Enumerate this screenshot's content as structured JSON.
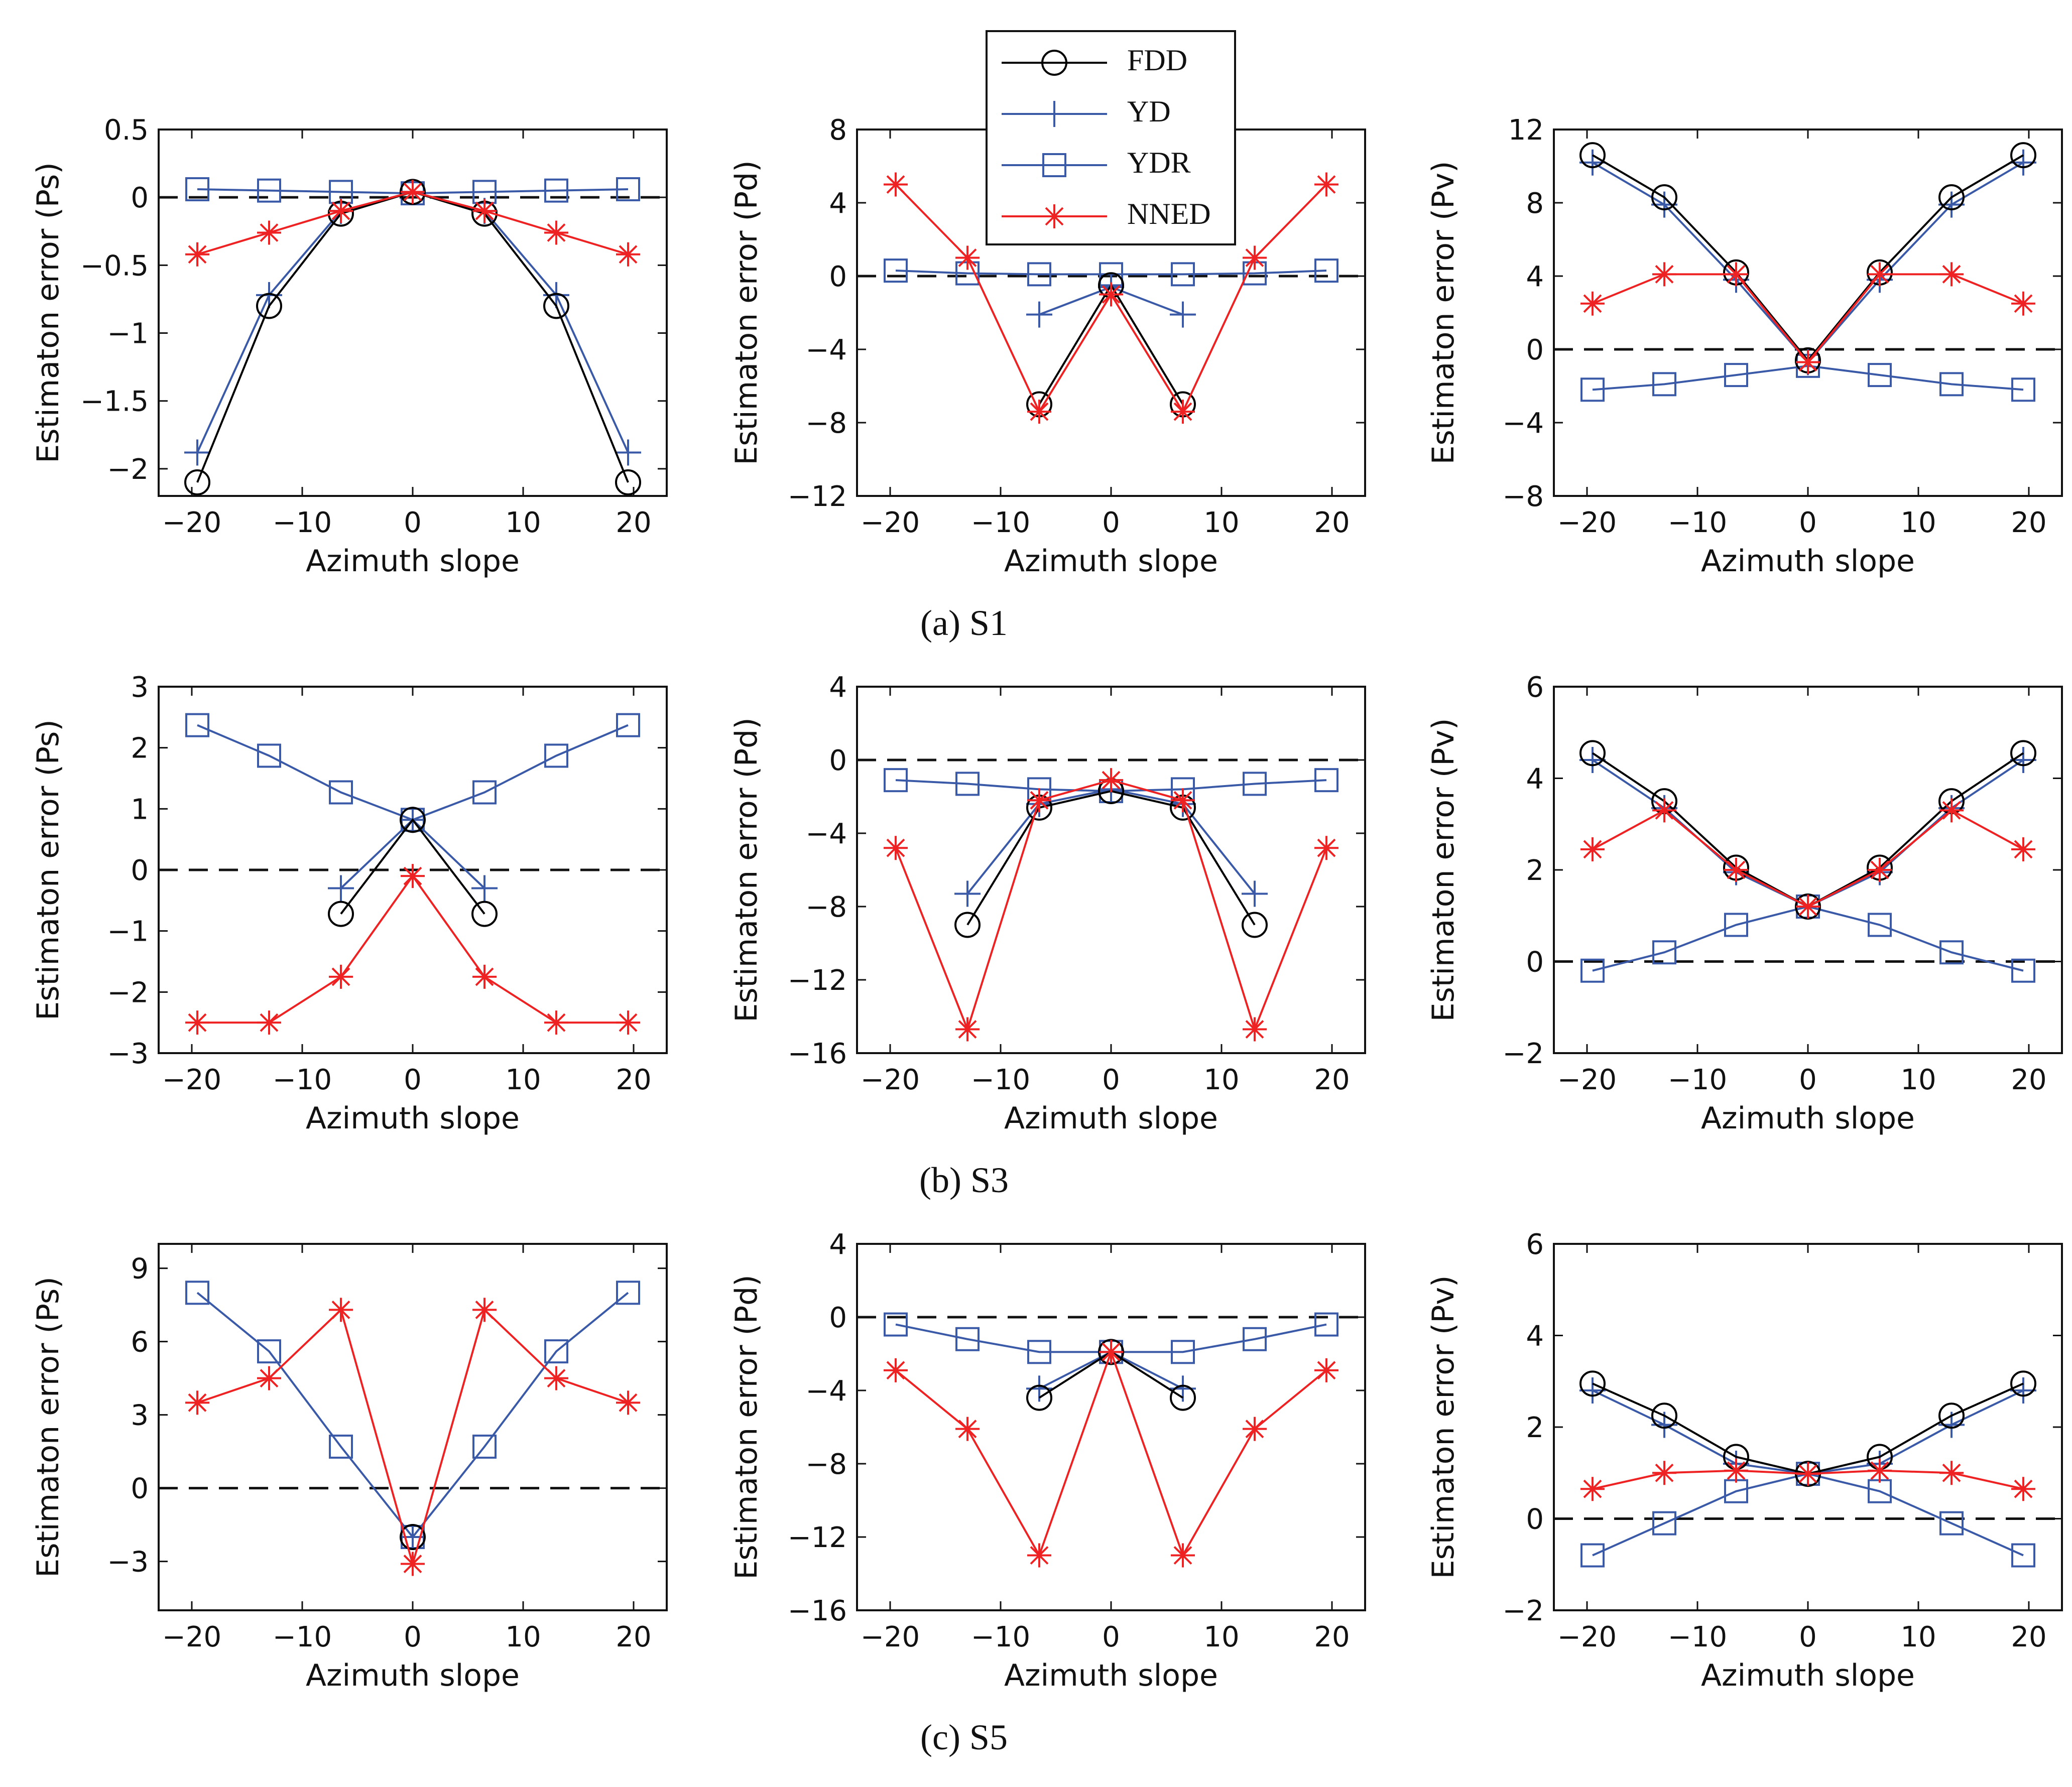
{
  "figure": {
    "legend": [
      {
        "name": "FDD",
        "color": "#000000",
        "marker": "circle"
      },
      {
        "name": "YD",
        "color": "#3a5aa8",
        "marker": "plus"
      },
      {
        "name": "YDR",
        "color": "#3a5aa8",
        "marker": "square"
      },
      {
        "name": "NNED",
        "color": "#ee2222",
        "marker": "asterisk"
      }
    ],
    "row_captions": [
      "(a) S1",
      "(b) S3",
      "(c) S5"
    ]
  },
  "chart_data": [
    {
      "type": "line",
      "row": 0,
      "col": 0,
      "xlabel": "Azimuth slope",
      "ylabel": "Estimaton error (Ps)",
      "xlim": [
        -23,
        23
      ],
      "ylim": [
        -2.2,
        0.5
      ],
      "xticks": [
        -20,
        -10,
        0,
        10,
        20
      ],
      "xtick_labels": [
        "−20",
        "−10",
        "0",
        "10",
        "20"
      ],
      "yticks": [
        0.5,
        0,
        -0.5,
        -1,
        -1.5,
        -2
      ],
      "ytick_labels": [
        "0.5",
        "0",
        "−0.5",
        "−1",
        "−1.5",
        "−2"
      ],
      "series": [
        {
          "name": "FDD",
          "x": [
            -19.5,
            -13,
            -6.5,
            0,
            6.5,
            13,
            19.5
          ],
          "y": [
            -2.1,
            -0.8,
            -0.12,
            0.04,
            -0.12,
            -0.8,
            -2.1
          ]
        },
        {
          "name": "YD",
          "x": [
            -19.5,
            -13,
            -6.5,
            0,
            6.5,
            13,
            19.5
          ],
          "y": [
            -1.88,
            -0.72,
            -0.1,
            0.04,
            -0.1,
            -0.72,
            -1.88
          ]
        },
        {
          "name": "YDR",
          "x": [
            -19.5,
            -13,
            -6.5,
            0,
            6.5,
            13,
            19.5
          ],
          "y": [
            0.06,
            0.05,
            0.04,
            0.03,
            0.04,
            0.05,
            0.06
          ]
        },
        {
          "name": "NNED",
          "x": [
            -19.5,
            -13,
            -6.5,
            0,
            6.5,
            13,
            19.5
          ],
          "y": [
            -0.42,
            -0.26,
            -0.1,
            0.04,
            -0.1,
            -0.26,
            -0.42
          ]
        }
      ]
    },
    {
      "type": "line",
      "row": 0,
      "col": 1,
      "xlabel": "Azimuth slope",
      "ylabel": "Estimaton error (Pd)",
      "xlim": [
        -23,
        23
      ],
      "ylim": [
        -12,
        8
      ],
      "xticks": [
        -20,
        -10,
        0,
        10,
        20
      ],
      "xtick_labels": [
        "−20",
        "−10",
        "0",
        "10",
        "20"
      ],
      "yticks": [
        8,
        4,
        0,
        -4,
        -8,
        -12
      ],
      "ytick_labels": [
        "8",
        "4",
        "0",
        "−4",
        "−8",
        "−12"
      ],
      "series": [
        {
          "name": "FDD",
          "x": [
            -6.5,
            0,
            6.5
          ],
          "y": [
            -7.0,
            -0.5,
            -7.0
          ]
        },
        {
          "name": "YD",
          "x": [
            -6.5,
            0,
            6.5
          ],
          "y": [
            -2.1,
            -0.6,
            -2.1
          ]
        },
        {
          "name": "YDR",
          "x": [
            -19.5,
            -13,
            -6.5,
            0,
            6.5,
            13,
            19.5
          ],
          "y": [
            0.3,
            0.15,
            0.1,
            0.1,
            0.1,
            0.15,
            0.3
          ]
        },
        {
          "name": "NNED",
          "x": [
            -19.5,
            -13,
            -6.5,
            0,
            6.5,
            13,
            19.5
          ],
          "y": [
            5.0,
            1.0,
            -7.4,
            -1.0,
            -7.4,
            1.0,
            5.0
          ]
        }
      ]
    },
    {
      "type": "line",
      "row": 0,
      "col": 2,
      "xlabel": "Azimuth slope",
      "ylabel": "Estimaton error (Pv)",
      "xlim": [
        -23,
        23
      ],
      "ylim": [
        -8,
        12
      ],
      "xticks": [
        -20,
        -10,
        0,
        10,
        20
      ],
      "xtick_labels": [
        "−20",
        "−10",
        "0",
        "10",
        "20"
      ],
      "yticks": [
        12,
        8,
        4,
        0,
        -4,
        -8
      ],
      "ytick_labels": [
        "12",
        "8",
        "4",
        "0",
        "−4",
        "−8"
      ],
      "series": [
        {
          "name": "FDD",
          "x": [
            -19.5,
            -13,
            -6.5,
            0,
            6.5,
            13,
            19.5
          ],
          "y": [
            10.6,
            8.3,
            4.2,
            -0.6,
            4.2,
            8.3,
            10.6
          ]
        },
        {
          "name": "YD",
          "x": [
            -19.5,
            -13,
            -6.5,
            0,
            6.5,
            13,
            19.5
          ],
          "y": [
            10.2,
            7.9,
            3.8,
            -0.7,
            3.8,
            7.9,
            10.2
          ]
        },
        {
          "name": "YDR",
          "x": [
            -19.5,
            -13,
            -6.5,
            0,
            6.5,
            13,
            19.5
          ],
          "y": [
            -2.2,
            -1.9,
            -1.4,
            -0.9,
            -1.4,
            -1.9,
            -2.2
          ]
        },
        {
          "name": "NNED",
          "x": [
            -19.5,
            -13,
            -6.5,
            0,
            6.5,
            13,
            19.5
          ],
          "y": [
            2.5,
            4.1,
            4.1,
            -0.7,
            4.1,
            4.1,
            2.5
          ]
        }
      ]
    },
    {
      "type": "line",
      "row": 1,
      "col": 0,
      "xlabel": "Azimuth slope",
      "ylabel": "Estimaton error (Ps)",
      "xlim": [
        -23,
        23
      ],
      "ylim": [
        -3,
        3
      ],
      "xticks": [
        -20,
        -10,
        0,
        10,
        20
      ],
      "xtick_labels": [
        "−20",
        "−10",
        "0",
        "10",
        "20"
      ],
      "yticks": [
        3,
        2,
        1,
        0,
        -1,
        -2,
        -3
      ],
      "ytick_labels": [
        "3",
        "2",
        "1",
        "0",
        "−1",
        "−2",
        "−3"
      ],
      "series": [
        {
          "name": "FDD",
          "x": [
            -6.5,
            0,
            6.5
          ],
          "y": [
            -0.72,
            0.82,
            -0.72
          ]
        },
        {
          "name": "YD",
          "x": [
            -6.5,
            0,
            6.5
          ],
          "y": [
            -0.3,
            0.82,
            -0.3
          ]
        },
        {
          "name": "YDR",
          "x": [
            -19.5,
            -13,
            -6.5,
            0,
            6.5,
            13,
            19.5
          ],
          "y": [
            2.37,
            1.87,
            1.27,
            0.82,
            1.27,
            1.87,
            2.37
          ]
        },
        {
          "name": "NNED",
          "x": [
            -19.5,
            -13,
            -6.5,
            0,
            6.5,
            13,
            19.5
          ],
          "y": [
            -2.5,
            -2.5,
            -1.75,
            -0.1,
            -1.75,
            -2.5,
            -2.5
          ]
        }
      ]
    },
    {
      "type": "line",
      "row": 1,
      "col": 1,
      "xlabel": "Azimuth slope",
      "ylabel": "Estimaton error (Pd)",
      "xlim": [
        -23,
        23
      ],
      "ylim": [
        -16,
        4
      ],
      "xticks": [
        -20,
        -10,
        0,
        10,
        20
      ],
      "xtick_labels": [
        "−20",
        "−10",
        "0",
        "10",
        "20"
      ],
      "yticks": [
        4,
        0,
        -4,
        -8,
        -12,
        -16
      ],
      "ytick_labels": [
        "4",
        "0",
        "−4",
        "−8",
        "−12",
        "−16"
      ],
      "series": [
        {
          "name": "FDD",
          "x": [
            -13,
            -6.5,
            0,
            6.5,
            13
          ],
          "y": [
            -9.0,
            -2.6,
            -1.7,
            -2.6,
            -9.0
          ]
        },
        {
          "name": "YD",
          "x": [
            -13,
            -6.5,
            0,
            6.5,
            13
          ],
          "y": [
            -7.3,
            -2.4,
            -1.6,
            -2.4,
            -7.3
          ]
        },
        {
          "name": "YDR",
          "x": [
            -19.5,
            -13,
            -6.5,
            0,
            6.5,
            13,
            19.5
          ],
          "y": [
            -1.1,
            -1.3,
            -1.6,
            -1.7,
            -1.6,
            -1.3,
            -1.1
          ]
        },
        {
          "name": "NNED",
          "x": [
            -19.5,
            -13,
            -6.5,
            0,
            6.5,
            13,
            19.5
          ],
          "y": [
            -4.8,
            -14.7,
            -2.2,
            -1.1,
            -2.2,
            -14.7,
            -4.8
          ]
        }
      ]
    },
    {
      "type": "line",
      "row": 1,
      "col": 2,
      "xlabel": "Azimuth slope",
      "ylabel": "Estimaton error (Pv)",
      "xlim": [
        -23,
        23
      ],
      "ylim": [
        -2,
        6
      ],
      "xticks": [
        -20,
        -10,
        0,
        10,
        20
      ],
      "xtick_labels": [
        "−20",
        "−10",
        "0",
        "10",
        "20"
      ],
      "yticks": [
        6,
        4,
        2,
        0,
        -2
      ],
      "ytick_labels": [
        "6",
        "4",
        "2",
        "0",
        "−2"
      ],
      "series": [
        {
          "name": "FDD",
          "x": [
            -19.5,
            -13,
            -6.5,
            0,
            6.5,
            13,
            19.5
          ],
          "y": [
            4.55,
            3.5,
            2.05,
            1.2,
            2.05,
            3.5,
            4.55
          ]
        },
        {
          "name": "YD",
          "x": [
            -19.5,
            -13,
            -6.5,
            0,
            6.5,
            13,
            19.5
          ],
          "y": [
            4.4,
            3.35,
            1.95,
            1.2,
            1.95,
            3.35,
            4.4
          ]
        },
        {
          "name": "YDR",
          "x": [
            -19.5,
            -13,
            -6.5,
            0,
            6.5,
            13,
            19.5
          ],
          "y": [
            -0.2,
            0.2,
            0.8,
            1.2,
            0.8,
            0.2,
            -0.2
          ]
        },
        {
          "name": "NNED",
          "x": [
            -19.5,
            -13,
            -6.5,
            0,
            6.5,
            13,
            19.5
          ],
          "y": [
            2.45,
            3.3,
            2.0,
            1.2,
            2.0,
            3.3,
            2.45
          ]
        }
      ]
    },
    {
      "type": "line",
      "row": 2,
      "col": 0,
      "xlabel": "Azimuth slope",
      "ylabel": "Estimaton error (Ps)",
      "xlim": [
        -23,
        23
      ],
      "ylim": [
        -5,
        10
      ],
      "xticks": [
        -20,
        -10,
        0,
        10,
        20
      ],
      "xtick_labels": [
        "−20",
        "−10",
        "0",
        "10",
        "20"
      ],
      "yticks": [
        9,
        6,
        3,
        0,
        -3
      ],
      "ytick_labels": [
        "9",
        "6",
        "3",
        "0",
        "−3"
      ],
      "series": [
        {
          "name": "FDD",
          "x": [
            0
          ],
          "y": [
            -2.0
          ]
        },
        {
          "name": "YD",
          "x": [
            0
          ],
          "y": [
            -2.0
          ]
        },
        {
          "name": "YDR",
          "x": [
            -19.5,
            -13,
            -6.5,
            0,
            6.5,
            13,
            19.5
          ],
          "y": [
            8.0,
            5.6,
            1.7,
            -2.0,
            1.7,
            5.6,
            8.0
          ]
        },
        {
          "name": "NNED",
          "x": [
            -19.5,
            -13,
            -6.5,
            0,
            6.5,
            13,
            19.5
          ],
          "y": [
            3.5,
            4.5,
            7.3,
            -3.1,
            7.3,
            4.5,
            3.5
          ]
        }
      ]
    },
    {
      "type": "line",
      "row": 2,
      "col": 1,
      "xlabel": "Azimuth slope",
      "ylabel": "Estimaton error (Pd)",
      "xlim": [
        -23,
        23
      ],
      "ylim": [
        -16,
        4
      ],
      "xticks": [
        -20,
        -10,
        0,
        10,
        20
      ],
      "xtick_labels": [
        "−20",
        "−10",
        "0",
        "10",
        "20"
      ],
      "yticks": [
        4,
        0,
        -4,
        -8,
        -12,
        -16
      ],
      "ytick_labels": [
        "4",
        "0",
        "−4",
        "−8",
        "−12",
        "−16"
      ],
      "series": [
        {
          "name": "FDD",
          "x": [
            -6.5,
            0,
            6.5
          ],
          "y": [
            -4.4,
            -1.9,
            -4.4
          ]
        },
        {
          "name": "YD",
          "x": [
            -6.5,
            0,
            6.5
          ],
          "y": [
            -3.9,
            -1.9,
            -3.9
          ]
        },
        {
          "name": "YDR",
          "x": [
            -19.5,
            -13,
            -6.5,
            0,
            6.5,
            13,
            19.5
          ],
          "y": [
            -0.4,
            -1.2,
            -1.9,
            -1.9,
            -1.9,
            -1.2,
            -0.4
          ]
        },
        {
          "name": "NNED",
          "x": [
            -19.5,
            -13,
            -6.5,
            0,
            6.5,
            13,
            19.5
          ],
          "y": [
            -2.9,
            -6.1,
            -13.0,
            -1.9,
            -13.0,
            -6.1,
            -2.9
          ]
        }
      ]
    },
    {
      "type": "line",
      "row": 2,
      "col": 2,
      "xlabel": "Azimuth slope",
      "ylabel": "Estimaton error (Pv)",
      "xlim": [
        -23,
        23
      ],
      "ylim": [
        -2,
        6
      ],
      "xticks": [
        -20,
        -10,
        0,
        10,
        20
      ],
      "xtick_labels": [
        "−20",
        "−10",
        "0",
        "10",
        "20"
      ],
      "yticks": [
        6,
        4,
        2,
        0,
        -2
      ],
      "ytick_labels": [
        "6",
        "4",
        "2",
        "0",
        "−2"
      ],
      "series": [
        {
          "name": "FDD",
          "x": [
            -19.5,
            -13,
            -6.5,
            0,
            6.5,
            13,
            19.5
          ],
          "y": [
            2.95,
            2.25,
            1.35,
            0.98,
            1.35,
            2.25,
            2.95
          ]
        },
        {
          "name": "YD",
          "x": [
            -19.5,
            -13,
            -6.5,
            0,
            6.5,
            13,
            19.5
          ],
          "y": [
            2.8,
            2.05,
            1.2,
            0.98,
            1.2,
            2.05,
            2.8
          ]
        },
        {
          "name": "YDR",
          "x": [
            -19.5,
            -13,
            -6.5,
            0,
            6.5,
            13,
            19.5
          ],
          "y": [
            -0.8,
            -0.1,
            0.6,
            0.98,
            0.6,
            -0.1,
            -0.8
          ]
        },
        {
          "name": "NNED",
          "x": [
            -19.5,
            -13,
            -6.5,
            0,
            6.5,
            13,
            19.5
          ],
          "y": [
            0.65,
            1.0,
            1.05,
            0.98,
            1.05,
            1.0,
            0.65
          ]
        }
      ]
    }
  ]
}
